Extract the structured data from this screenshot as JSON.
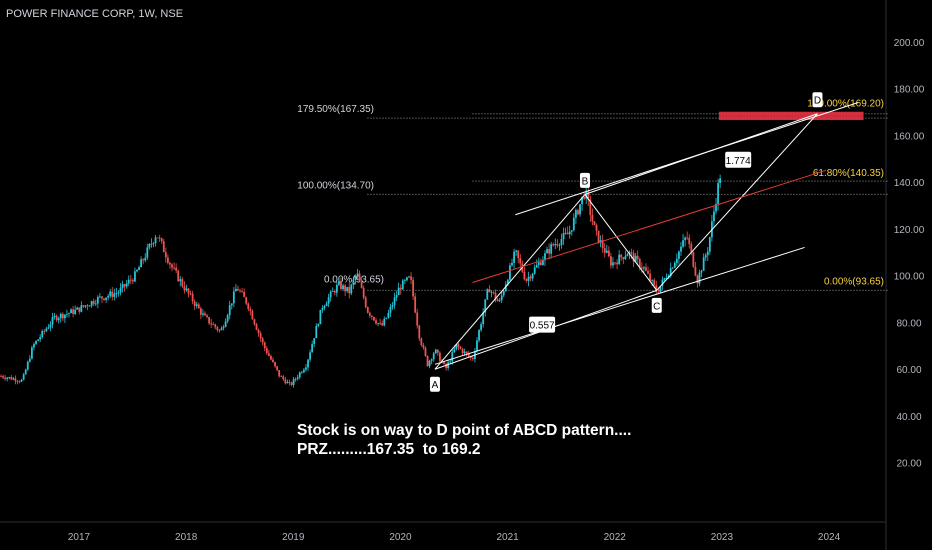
{
  "header": {
    "title": "POWER FINANCE CORP, 1W, NSE"
  },
  "annotation": {
    "line1": "Stock is on way to D point of ABCD pattern....",
    "line2": "PRZ.........167.35  to 169.2"
  },
  "colors": {
    "background": "#000000",
    "up": "#26c6da",
    "down": "#ef5350",
    "fib_left": "#d1d4dc",
    "fib_right": "#f5d142",
    "prz": "#f23645",
    "trend_red": "#e53935",
    "pattern": "#ffffff"
  },
  "chart_data": {
    "type": "candlestick",
    "title": "POWER FINANCE CORP, 1W, NSE",
    "y_axis": {
      "range": [
        0,
        214
      ],
      "ticks": [
        20,
        40,
        60,
        80,
        100,
        120,
        140,
        160,
        180,
        200
      ],
      "tick_labels": [
        "20.00",
        "40.00",
        "60.00",
        "80.00",
        "100.00",
        "120.00",
        "140.00",
        "160.00",
        "180.00",
        "200.00"
      ],
      "position": "right"
    },
    "x_axis": {
      "ticks": [
        2017,
        2018,
        2019,
        2020,
        2021,
        2022,
        2023,
        2024
      ],
      "tick_labels": [
        "2017",
        "2018",
        "2019",
        "2020",
        "2021",
        "2022",
        "2023",
        "2024"
      ],
      "range": [
        2016.3,
        2024.8
      ]
    },
    "price_path": [
      [
        2016.3,
        57
      ],
      [
        2016.5,
        55
      ],
      [
        2016.6,
        70
      ],
      [
        2016.8,
        82
      ],
      [
        2017.0,
        85
      ],
      [
        2017.2,
        90
      ],
      [
        2017.4,
        93
      ],
      [
        2017.55,
        100
      ],
      [
        2017.75,
        118
      ],
      [
        2017.9,
        103
      ],
      [
        2018.05,
        92
      ],
      [
        2018.2,
        82
      ],
      [
        2018.35,
        76
      ],
      [
        2018.5,
        95
      ],
      [
        2018.6,
        88
      ],
      [
        2018.75,
        70
      ],
      [
        2018.9,
        57
      ],
      [
        2019.0,
        53
      ],
      [
        2019.15,
        62
      ],
      [
        2019.3,
        87
      ],
      [
        2019.45,
        96
      ],
      [
        2019.55,
        93
      ],
      [
        2019.62,
        101
      ],
      [
        2019.72,
        85
      ],
      [
        2019.85,
        78
      ],
      [
        2019.92,
        84
      ],
      [
        2020.02,
        95
      ],
      [
        2020.12,
        99
      ],
      [
        2020.2,
        75
      ],
      [
        2020.28,
        62
      ],
      [
        2020.35,
        68
      ],
      [
        2020.45,
        60
      ],
      [
        2020.55,
        70
      ],
      [
        2020.7,
        64
      ],
      [
        2020.78,
        80
      ],
      [
        2020.85,
        95
      ],
      [
        2020.95,
        88
      ],
      [
        2021.1,
        110
      ],
      [
        2021.2,
        98
      ],
      [
        2021.3,
        104
      ],
      [
        2021.45,
        113
      ],
      [
        2021.6,
        118
      ],
      [
        2021.75,
        136
      ],
      [
        2021.85,
        118
      ],
      [
        2022.0,
        105
      ],
      [
        2022.15,
        110
      ],
      [
        2022.3,
        103
      ],
      [
        2022.42,
        93
      ],
      [
        2022.55,
        103
      ],
      [
        2022.7,
        117
      ],
      [
        2022.8,
        98
      ],
      [
        2022.9,
        112
      ],
      [
        2022.98,
        135
      ],
      [
        2023.02,
        145
      ]
    ],
    "fibonacci_left": [
      {
        "label": "179.50%(167.35)",
        "value": 167.35
      },
      {
        "label": "100.00%(134.70)",
        "value": 134.7
      },
      {
        "label": "0.00%(93.65)",
        "value": 93.65
      }
    ],
    "fibonacci_right": [
      {
        "label": "100.00%(169.20)",
        "value": 169.2
      },
      {
        "label": "61.80%(140.35)",
        "value": 140.35
      },
      {
        "label": "0.00%(93.65)",
        "value": 93.65
      }
    ],
    "prz": {
      "low": 167.35,
      "high": 169.2,
      "x_start": 2023.0,
      "x_end": 2024.35
    },
    "pattern_points": [
      {
        "label": "A",
        "x": 2020.35,
        "value": 59.9
      },
      {
        "label": "B",
        "x": 2021.75,
        "value": 134.7
      },
      {
        "label": "C",
        "x": 2022.42,
        "value": 93.65
      },
      {
        "label": "D",
        "x": 2023.92,
        "value": 169.2
      }
    ],
    "ratio_labels": [
      {
        "label": "0.557",
        "x": 2021.35,
        "value": 79
      },
      {
        "label": "1.774",
        "x": 2023.18,
        "value": 149.5
      }
    ]
  }
}
